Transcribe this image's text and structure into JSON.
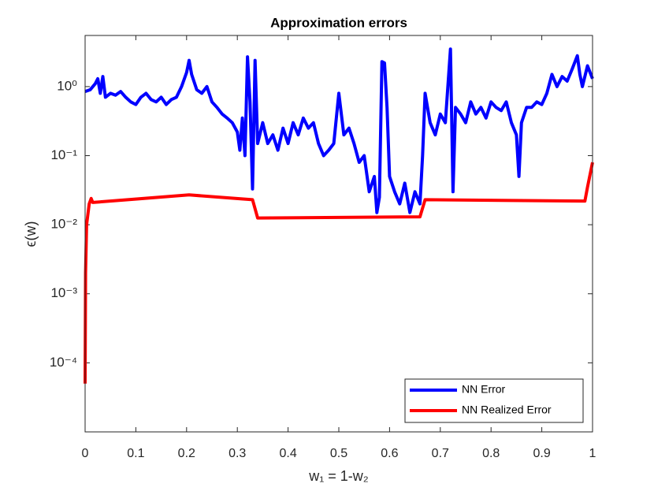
{
  "chart_data": {
    "type": "line",
    "title": "Approximation errors",
    "xlabel": "w₁ = 1-w₂",
    "ylabel": "ϵ(w)",
    "yscale": "log",
    "xlim": [
      0,
      1
    ],
    "ylim": [
      1e-05,
      5.5
    ],
    "xticks": [
      0,
      0.1,
      0.2,
      0.3,
      0.4,
      0.5,
      0.6,
      0.7,
      0.8,
      0.9,
      1
    ],
    "yticks": [
      {
        "value": 0.0001,
        "label": "10⁻⁴"
      },
      {
        "value": 0.001,
        "label": "10⁻³"
      },
      {
        "value": 0.01,
        "label": "10⁻²"
      },
      {
        "value": 0.1,
        "label": "10⁻¹"
      },
      {
        "value": 1,
        "label": "10⁰"
      }
    ],
    "legend": "lower right",
    "series": [
      {
        "name": "NN Error",
        "color": "#0000ff",
        "x": [
          0,
          0.01,
          0.02,
          0.025,
          0.03,
          0.035,
          0.04,
          0.05,
          0.06,
          0.07,
          0.08,
          0.09,
          0.1,
          0.11,
          0.12,
          0.13,
          0.14,
          0.15,
          0.16,
          0.17,
          0.18,
          0.19,
          0.2,
          0.205,
          0.21,
          0.22,
          0.23,
          0.24,
          0.25,
          0.26,
          0.27,
          0.28,
          0.29,
          0.3,
          0.305,
          0.31,
          0.315,
          0.32,
          0.325,
          0.33,
          0.335,
          0.34,
          0.35,
          0.36,
          0.37,
          0.38,
          0.39,
          0.4,
          0.41,
          0.42,
          0.43,
          0.44,
          0.45,
          0.46,
          0.47,
          0.48,
          0.49,
          0.5,
          0.51,
          0.52,
          0.53,
          0.54,
          0.55,
          0.56,
          0.57,
          0.575,
          0.58,
          0.585,
          0.59,
          0.595,
          0.6,
          0.61,
          0.62,
          0.63,
          0.64,
          0.65,
          0.66,
          0.665,
          0.67,
          0.68,
          0.69,
          0.7,
          0.71,
          0.72,
          0.725,
          0.73,
          0.74,
          0.75,
          0.76,
          0.77,
          0.78,
          0.79,
          0.8,
          0.81,
          0.82,
          0.83,
          0.84,
          0.85,
          0.855,
          0.86,
          0.87,
          0.88,
          0.89,
          0.9,
          0.91,
          0.92,
          0.93,
          0.94,
          0.95,
          0.96,
          0.97,
          0.975,
          0.98,
          0.99,
          1
        ],
        "values": [
          0.85,
          0.9,
          1.1,
          1.3,
          0.8,
          1.4,
          0.7,
          0.8,
          0.75,
          0.85,
          0.7,
          0.6,
          0.55,
          0.7,
          0.8,
          0.65,
          0.6,
          0.7,
          0.55,
          0.65,
          0.7,
          1.0,
          1.6,
          2.4,
          1.5,
          0.9,
          0.8,
          1.0,
          0.6,
          0.5,
          0.4,
          0.35,
          0.3,
          0.22,
          0.12,
          0.35,
          0.1,
          2.7,
          0.6,
          0.033,
          2.4,
          0.15,
          0.3,
          0.15,
          0.2,
          0.12,
          0.25,
          0.15,
          0.3,
          0.2,
          0.35,
          0.25,
          0.3,
          0.15,
          0.1,
          0.12,
          0.15,
          0.8,
          0.2,
          0.25,
          0.15,
          0.08,
          0.1,
          0.03,
          0.05,
          0.015,
          0.025,
          2.3,
          2.2,
          0.5,
          0.05,
          0.03,
          0.02,
          0.04,
          0.015,
          0.03,
          0.02,
          0.1,
          0.8,
          0.3,
          0.2,
          0.4,
          0.3,
          3.5,
          0.03,
          0.5,
          0.4,
          0.3,
          0.6,
          0.4,
          0.5,
          0.35,
          0.6,
          0.5,
          0.45,
          0.6,
          0.3,
          0.2,
          0.05,
          0.3,
          0.5,
          0.5,
          0.6,
          0.55,
          0.8,
          1.5,
          1.0,
          1.4,
          1.2,
          1.8,
          2.8,
          1.5,
          1.0,
          2.0,
          1.3
        ]
      },
      {
        "name": "NN Realized Error",
        "color": "#ff0000",
        "x": [
          0,
          0.001,
          0.003,
          0.008,
          0.012,
          0.015,
          0.205,
          0.33,
          0.34,
          0.66,
          0.67,
          0.985,
          0.99,
          1
        ],
        "values": [
          5e-05,
          0.002,
          0.01,
          0.02,
          0.024,
          0.021,
          0.027,
          0.023,
          0.0125,
          0.013,
          0.023,
          0.022,
          0.035,
          0.08
        ]
      }
    ]
  }
}
